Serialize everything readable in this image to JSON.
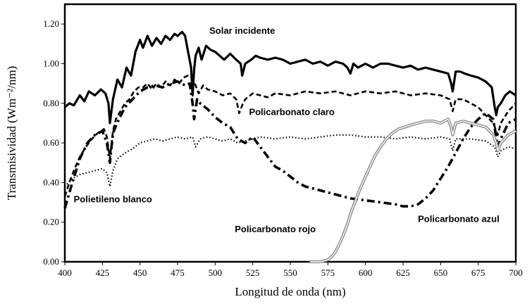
{
  "chart_data": {
    "type": "line",
    "title": "",
    "xlabel": "Longitud de onda (nm)",
    "ylabel": "Transmisividad (Wm⁻²/nm)",
    "xlim": [
      400,
      700
    ],
    "ylim": [
      0,
      1.3
    ],
    "xticks": [
      400,
      425,
      450,
      475,
      500,
      525,
      550,
      575,
      600,
      625,
      650,
      675,
      700
    ],
    "yticks": [
      0.0,
      0.2,
      0.4,
      0.6,
      0.8,
      1.0,
      1.2
    ],
    "ytick_labels": [
      "0.00",
      "0.20",
      "0.40",
      "0.60",
      "0.80",
      "1.00",
      "1.20"
    ],
    "grid": false,
    "legend": "none",
    "annotations": [
      {
        "text": "Solar incidente",
        "x": 518,
        "y": 1.15
      },
      {
        "text": "Policarbonato claro",
        "x": 551,
        "y": 0.74
      },
      {
        "text": "Polietileno blanco",
        "x": 432,
        "y": 0.3
      },
      {
        "text": "Policarbonato rojo",
        "x": 540,
        "y": 0.15
      },
      {
        "text": "Policarbonato azul",
        "x": 662,
        "y": 0.2
      }
    ],
    "series": [
      {
        "style": "solid",
        "x": [
          400,
          403,
          406,
          410,
          413,
          416,
          420,
          424,
          427,
          429,
          430,
          432,
          435,
          438,
          441,
          444,
          447,
          450,
          452,
          455,
          458,
          461,
          464,
          467,
          470,
          473,
          475,
          478,
          480,
          482,
          484,
          485,
          486,
          487,
          489,
          491,
          494,
          497,
          500,
          503,
          506,
          510,
          514,
          517,
          518,
          520,
          524,
          527,
          530,
          535,
          540,
          545,
          550,
          555,
          560,
          565,
          570,
          575,
          580,
          585,
          588,
          590,
          592,
          595,
          600,
          605,
          610,
          615,
          620,
          625,
          630,
          635,
          640,
          645,
          650,
          655,
          657,
          658,
          660,
          663,
          666,
          670,
          675,
          680,
          684,
          686,
          687,
          688,
          690,
          693,
          696,
          700
        ],
        "y": [
          0.78,
          0.8,
          0.79,
          0.84,
          0.81,
          0.86,
          0.84,
          0.87,
          0.85,
          0.8,
          0.7,
          0.82,
          0.92,
          0.88,
          0.98,
          0.94,
          1.06,
          1.12,
          1.08,
          1.14,
          1.09,
          1.13,
          1.1,
          1.14,
          1.12,
          1.15,
          1.14,
          1.16,
          1.14,
          1.06,
          0.98,
          0.84,
          0.97,
          1.04,
          1.08,
          1.02,
          1.09,
          1.07,
          1.06,
          1.04,
          1.02,
          1.05,
          1.02,
          1.0,
          0.94,
          1.0,
          1.02,
          1.04,
          1.03,
          1.02,
          1.03,
          1.02,
          1.0,
          1.01,
          1.02,
          1.0,
          1.01,
          0.99,
          1.01,
          1.0,
          0.98,
          0.95,
          1.0,
          0.98,
          1.0,
          0.98,
          1.0,
          1.0,
          0.99,
          0.98,
          0.99,
          0.97,
          0.98,
          0.97,
          0.96,
          0.95,
          0.9,
          0.86,
          0.96,
          0.96,
          0.95,
          0.94,
          0.93,
          0.91,
          0.88,
          0.78,
          0.74,
          0.78,
          0.8,
          0.84,
          0.86,
          0.84
        ]
      },
      {
        "style": "dashed",
        "x": [
          400,
          403,
          406,
          410,
          414,
          418,
          422,
          426,
          428,
          430,
          432,
          434,
          437,
          440,
          443,
          446,
          449,
          452,
          455,
          458,
          461,
          464,
          467,
          470,
          473,
          476,
          479,
          482,
          484,
          486,
          489,
          492,
          495,
          500,
          505,
          510,
          514,
          516,
          518,
          520,
          525,
          530,
          535,
          540,
          550,
          560,
          570,
          580,
          590,
          600,
          610,
          620,
          630,
          640,
          650,
          656,
          658,
          660,
          665,
          670,
          675,
          680,
          685,
          688,
          690,
          695,
          700
        ],
        "y": [
          0.33,
          0.4,
          0.46,
          0.53,
          0.58,
          0.62,
          0.65,
          0.67,
          0.63,
          0.52,
          0.66,
          0.72,
          0.76,
          0.8,
          0.82,
          0.86,
          0.88,
          0.88,
          0.9,
          0.87,
          0.9,
          0.88,
          0.91,
          0.89,
          0.92,
          0.9,
          0.93,
          0.94,
          0.93,
          0.91,
          0.85,
          0.89,
          0.87,
          0.86,
          0.84,
          0.85,
          0.82,
          0.75,
          0.79,
          0.82,
          0.85,
          0.84,
          0.83,
          0.85,
          0.84,
          0.86,
          0.85,
          0.86,
          0.84,
          0.86,
          0.85,
          0.86,
          0.84,
          0.85,
          0.84,
          0.82,
          0.76,
          0.82,
          0.82,
          0.8,
          0.78,
          0.74,
          0.7,
          0.64,
          0.7,
          0.76,
          0.8
        ]
      },
      {
        "style": "dotted",
        "x": [
          400,
          405,
          410,
          415,
          420,
          425,
          428,
          430,
          432,
          435,
          440,
          445,
          450,
          455,
          460,
          465,
          470,
          475,
          480,
          485,
          487,
          490,
          495,
          500,
          505,
          510,
          515,
          520,
          525,
          530,
          540,
          550,
          560,
          570,
          580,
          590,
          600,
          610,
          620,
          630,
          640,
          650,
          656,
          658,
          660,
          670,
          680,
          686,
          688,
          690,
          695,
          700
        ],
        "y": [
          0.38,
          0.42,
          0.44,
          0.45,
          0.46,
          0.47,
          0.45,
          0.38,
          0.46,
          0.52,
          0.55,
          0.57,
          0.6,
          0.61,
          0.62,
          0.61,
          0.62,
          0.63,
          0.62,
          0.63,
          0.58,
          0.62,
          0.63,
          0.62,
          0.61,
          0.62,
          0.6,
          0.61,
          0.62,
          0.63,
          0.62,
          0.63,
          0.62,
          0.63,
          0.64,
          0.64,
          0.63,
          0.63,
          0.62,
          0.63,
          0.62,
          0.63,
          0.62,
          0.56,
          0.62,
          0.62,
          0.61,
          0.58,
          0.53,
          0.56,
          0.58,
          0.57
        ]
      },
      {
        "style": "dash-dot",
        "x": [
          400,
          405,
          410,
          415,
          420,
          425,
          428,
          430,
          432,
          436,
          440,
          445,
          450,
          455,
          460,
          465,
          470,
          475,
          480,
          483,
          485,
          486,
          488,
          490,
          495,
          500,
          505,
          510,
          515,
          520,
          525,
          530,
          535,
          540,
          545,
          550,
          555,
          560,
          570,
          580,
          590,
          600,
          610,
          620,
          625,
          630,
          635,
          640,
          645,
          650,
          655,
          660,
          665,
          670,
          675,
          680,
          685,
          688,
          690,
          695,
          700
        ],
        "y": [
          0.27,
          0.4,
          0.52,
          0.6,
          0.64,
          0.66,
          0.6,
          0.5,
          0.65,
          0.72,
          0.78,
          0.82,
          0.86,
          0.88,
          0.89,
          0.88,
          0.9,
          0.91,
          0.89,
          0.9,
          0.8,
          0.72,
          0.82,
          0.8,
          0.77,
          0.73,
          0.7,
          0.68,
          0.62,
          0.6,
          0.63,
          0.58,
          0.53,
          0.48,
          0.46,
          0.43,
          0.4,
          0.38,
          0.36,
          0.34,
          0.32,
          0.31,
          0.3,
          0.29,
          0.28,
          0.28,
          0.29,
          0.32,
          0.36,
          0.42,
          0.48,
          0.55,
          0.62,
          0.68,
          0.72,
          0.75,
          0.72,
          0.58,
          0.62,
          0.7,
          0.72
        ]
      },
      {
        "style": "double-gray",
        "x": [
          563,
          570,
          575,
          578,
          580,
          582,
          585,
          588,
          590,
          593,
          596,
          600,
          603,
          606,
          610,
          614,
          618,
          622,
          626,
          630,
          635,
          640,
          645,
          650,
          655,
          657,
          658,
          660,
          665,
          670,
          675,
          680,
          685,
          687,
          688,
          690,
          695,
          700
        ],
        "y": [
          0.0,
          0.0,
          0.01,
          0.03,
          0.05,
          0.08,
          0.13,
          0.19,
          0.24,
          0.3,
          0.36,
          0.43,
          0.48,
          0.53,
          0.58,
          0.62,
          0.65,
          0.67,
          0.68,
          0.69,
          0.7,
          0.71,
          0.71,
          0.7,
          0.72,
          0.68,
          0.64,
          0.7,
          0.71,
          0.7,
          0.69,
          0.68,
          0.64,
          0.6,
          0.56,
          0.6,
          0.64,
          0.66
        ]
      }
    ]
  }
}
